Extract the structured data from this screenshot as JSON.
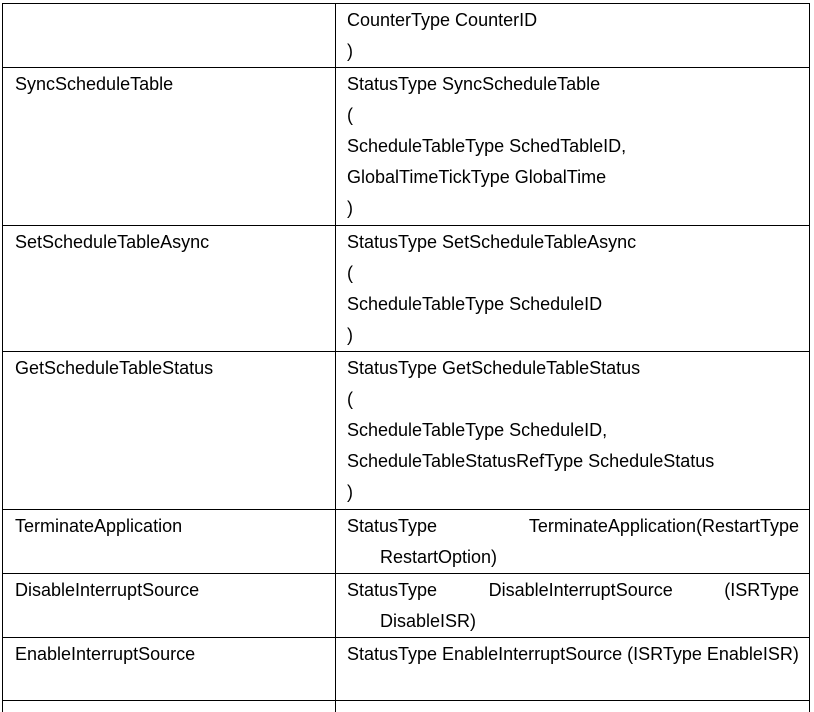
{
  "rows": [
    {
      "name": "",
      "lines": [
        "CounterType CounterID",
        ")"
      ]
    },
    {
      "name": "SyncScheduleTable",
      "lines": [
        "StatusType SyncScheduleTable",
        "(",
        "ScheduleTableType SchedTableID,",
        "GlobalTimeTickType GlobalTime",
        ")"
      ]
    },
    {
      "name": "SetScheduleTableAsync",
      "lines": [
        "StatusType SetScheduleTableAsync",
        "(",
        "ScheduleTableType ScheduleID",
        ")"
      ]
    },
    {
      "name": "GetScheduleTableStatus",
      "lines": [
        "StatusType GetScheduleTableStatus",
        "(",
        "ScheduleTableType ScheduleID,",
        "ScheduleTableStatusRefType ScheduleStatus",
        ")"
      ]
    },
    {
      "name": "TerminateApplication",
      "signature": "StatusType TerminateApplication(RestartType RestartOption)"
    },
    {
      "name": "DisableInterruptSource",
      "signature": "StatusType DisableInterruptSource (ISRType DisableISR)"
    },
    {
      "name": "EnableInterruptSource",
      "signature": "StatusType EnableInterruptSource (ISRType EnableISR)"
    }
  ]
}
